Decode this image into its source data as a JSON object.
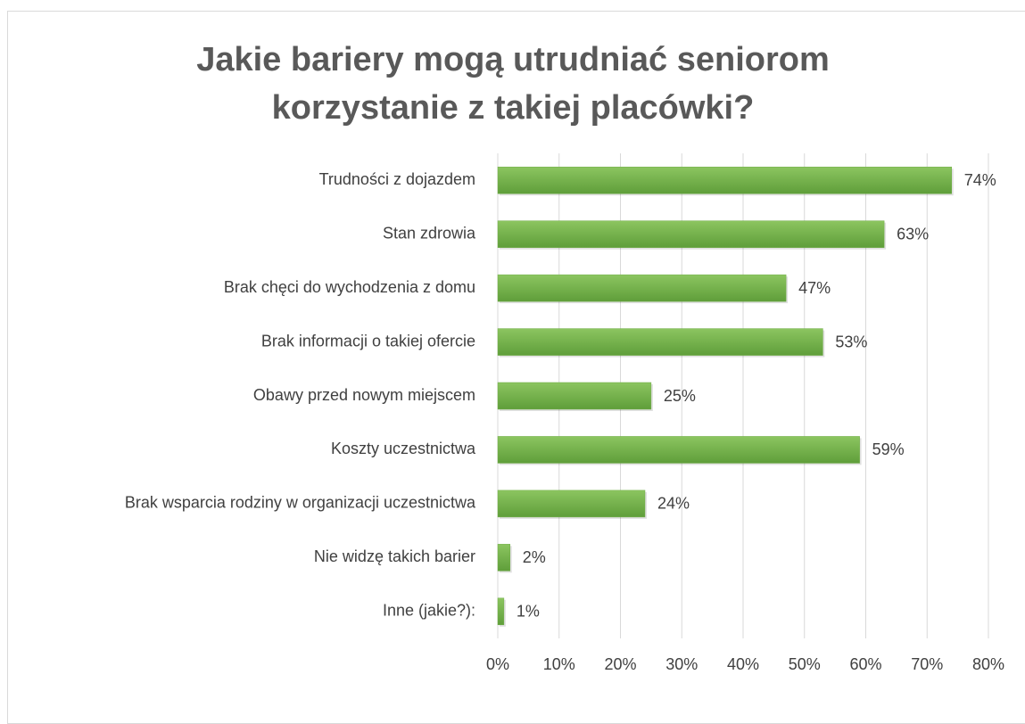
{
  "chart_data": {
    "type": "barh",
    "title": "Jakie bariery mogą utrudniać seniorom korzystanie z takiej placówki?",
    "categories": [
      "Trudności z dojazdem",
      "Stan zdrowia",
      "Brak chęci do wychodzenia z domu",
      "Brak informacji o takiej ofercie",
      "Obawy przed nowym miejscem",
      "Koszty uczestnictwa",
      "Brak wsparcia rodziny w organizacji uczestnictwa",
      "Nie widzę takich barier",
      "Inne (jakie?):"
    ],
    "values": [
      74,
      63,
      47,
      53,
      25,
      59,
      24,
      2,
      1
    ],
    "value_labels": [
      "74%",
      "63%",
      "47%",
      "53%",
      "25%",
      "59%",
      "24%",
      "2%",
      "1%"
    ],
    "color": "#70ad47",
    "xlim": [
      0,
      80
    ],
    "xticks": [
      {
        "value": 0,
        "label": "0%"
      },
      {
        "value": 10,
        "label": "10%"
      },
      {
        "value": 20,
        "label": "20%"
      },
      {
        "value": 30,
        "label": "30%"
      },
      {
        "value": 40,
        "label": "40%"
      },
      {
        "value": 50,
        "label": "50%"
      },
      {
        "value": 60,
        "label": "60%"
      },
      {
        "value": 70,
        "label": "70%"
      },
      {
        "value": 80,
        "label": "80%"
      }
    ],
    "grid": true
  }
}
